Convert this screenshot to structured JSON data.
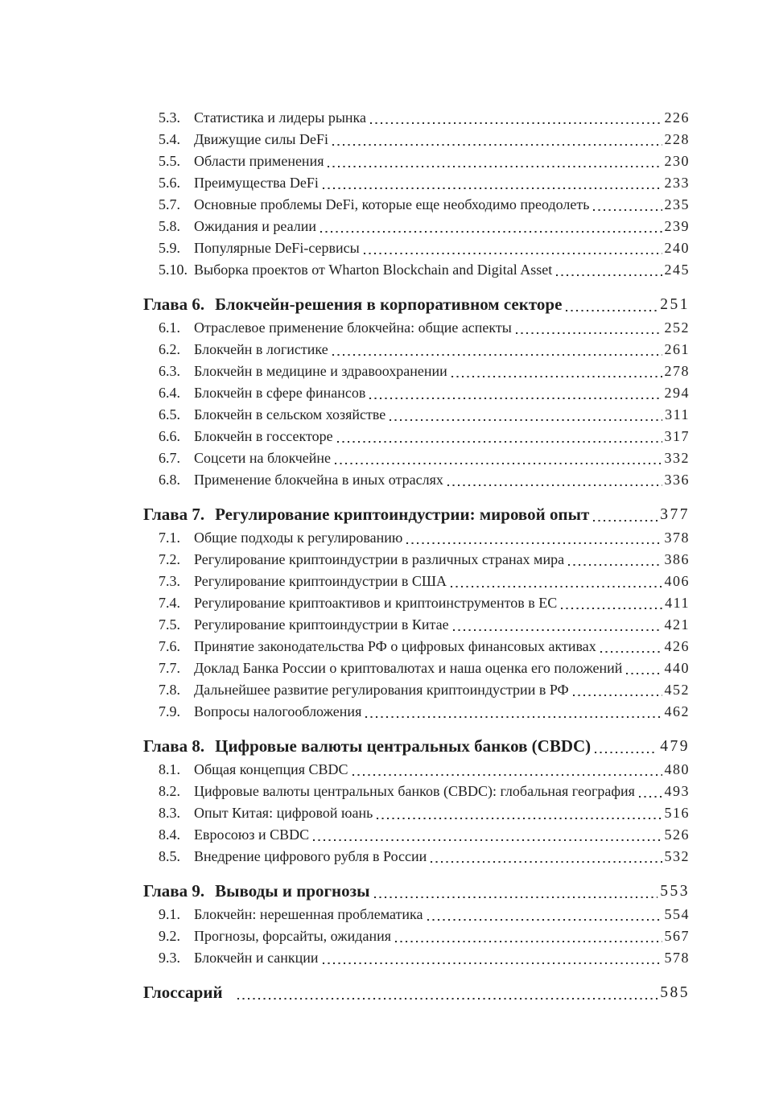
{
  "page": {
    "background_color": "#ffffff",
    "ink_color": "#1f1f1f",
    "language": "ru",
    "kind": "table-of-contents"
  },
  "toc": {
    "sections": [
      {
        "items": [
          {
            "num": "5.3.",
            "title": "Статистика и лидеры рынка",
            "page": "226"
          },
          {
            "num": "5.4.",
            "title": "Движущие силы DeFi",
            "page": "228"
          },
          {
            "num": "5.5.",
            "title": "Области применения",
            "page": "230"
          },
          {
            "num": "5.6.",
            "title": "Преимущества DeFi",
            "page": "233"
          },
          {
            "num": "5.7.",
            "title": "Основные проблемы DeFi, которые еще необходимо преодолеть",
            "page": "235"
          },
          {
            "num": "5.8.",
            "title": "Ожидания и реалии",
            "page": "239"
          },
          {
            "num": "5.9.",
            "title": "Популярные DeFi-сервисы",
            "page": "240"
          },
          {
            "num": "5.10.",
            "title": "Выборка проектов от Wharton Blockchain and Digital Asset",
            "page": "245"
          }
        ]
      },
      {
        "heading": {
          "label": "Глава 6.",
          "title": "Блокчейн-решения в корпоративном секторе",
          "page": "251"
        },
        "items": [
          {
            "num": "6.1.",
            "title": "Отраслевое применение блокчейна: общие аспекты",
            "page": "252"
          },
          {
            "num": "6.2.",
            "title": "Блокчейн в логистике",
            "page": "261"
          },
          {
            "num": "6.3.",
            "title": "Блокчейн в медицине и здравоохранении",
            "page": "278"
          },
          {
            "num": "6.4.",
            "title": "Блокчейн в сфере финансов",
            "page": "294"
          },
          {
            "num": "6.5.",
            "title": "Блокчейн в сельском хозяйстве",
            "page": "311"
          },
          {
            "num": "6.6.",
            "title": "Блокчейн в госсекторе",
            "page": "317"
          },
          {
            "num": "6.7.",
            "title": "Соцсети на блокчейне",
            "page": "332"
          },
          {
            "num": "6.8.",
            "title": "Применение блокчейна в иных отраслях",
            "page": "336"
          }
        ]
      },
      {
        "heading": {
          "label": "Глава 7.",
          "title": "Регулирование криптоиндустрии: мировой опыт",
          "page": "377"
        },
        "items": [
          {
            "num": "7.1.",
            "title": "Общие подходы к регулированию",
            "page": "378"
          },
          {
            "num": "7.2.",
            "title": "Регулирование криптоиндустрии в различных странах мира",
            "page": "386"
          },
          {
            "num": "7.3.",
            "title": "Регулирование криптоиндустрии в США",
            "page": "406"
          },
          {
            "num": "7.4.",
            "title": "Регулирование криптоактивов и криптоинструментов в ЕС",
            "page": "411"
          },
          {
            "num": "7.5.",
            "title": "Регулирование криптоиндустрии в Китае",
            "page": "421"
          },
          {
            "num": "7.6.",
            "title": "Принятие законодательства РФ о цифровых финансовых активах",
            "page": "426"
          },
          {
            "num": "7.7.",
            "title": "Доклад Банка России о криптовалютах и наша оценка его положений",
            "page": "440"
          },
          {
            "num": "7.8.",
            "title": "Дальнейшее развитие регулирования криптоиндустрии в РФ",
            "page": "452"
          },
          {
            "num": "7.9.",
            "title": "Вопросы налогообложения",
            "page": "462"
          }
        ]
      },
      {
        "heading": {
          "label": "Глава 8.",
          "title": "Цифровые валюты центральных банков (CBDC)",
          "page": "479"
        },
        "items": [
          {
            "num": "8.1.",
            "title": "Общая концепция CBDC",
            "page": "480"
          },
          {
            "num": "8.2.",
            "title": "Цифровые валюты центральных банков (CBDC): глобальная география",
            "page": "493"
          },
          {
            "num": "8.3.",
            "title": "Опыт Китая: цифровой юань",
            "page": "516"
          },
          {
            "num": "8.4.",
            "title": "Евросоюз и CBDC",
            "page": "526"
          },
          {
            "num": "8.5.",
            "title": "Внедрение цифрового рубля в России",
            "page": "532"
          }
        ]
      },
      {
        "heading": {
          "label": "Глава 9.",
          "title": "Выводы и прогнозы",
          "page": "553"
        },
        "items": [
          {
            "num": "9.1.",
            "title": "Блокчейн: нерешенная проблематика",
            "page": "554"
          },
          {
            "num": "9.2.",
            "title": "Прогнозы, форсайты, ожидания",
            "page": "567"
          },
          {
            "num": "9.3.",
            "title": "Блокчейн и санкции",
            "page": "578"
          }
        ]
      },
      {
        "heading": {
          "label": "Глоссарий",
          "title": "",
          "page": "585"
        },
        "items": []
      }
    ]
  }
}
